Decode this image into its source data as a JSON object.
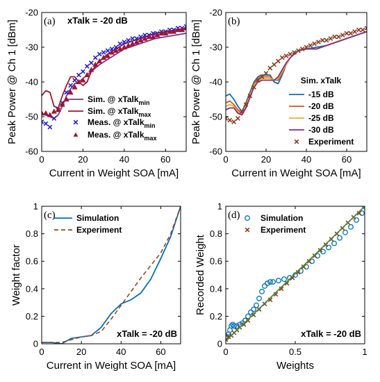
{
  "colors": {
    "blue": "#0072BD",
    "red": "#A2142F",
    "orange": "#D95319",
    "yellow": "#EDB120",
    "purple": "#7E2F8E",
    "brown_x": "#8B3A1A",
    "green_line": "#4a8f3c",
    "axis": "#000000"
  },
  "chart_data": [
    {
      "id": "a",
      "type": "line",
      "panel_label": "(a)",
      "annotation": "xTalk = -20 dB",
      "xlabel": "Current in Weight SOA [mA]",
      "ylabel": "Peak Power @ Ch 1 [dBm]",
      "xlim": [
        0,
        70
      ],
      "ylim": [
        -60,
        -20
      ],
      "xticks": [
        0,
        20,
        40,
        60
      ],
      "yticks": [
        -60,
        -50,
        -40,
        -30,
        -20
      ],
      "grid": false,
      "legend_position": "center-left",
      "series": [
        {
          "name": "Sim. @ xTalk",
          "sub": "min",
          "style": "line",
          "color": "#7E2F8E",
          "x": [
            0,
            2,
            4,
            6,
            8,
            10,
            12,
            14,
            16,
            18,
            20,
            24,
            28,
            32,
            36,
            40,
            45,
            50,
            55,
            60,
            65,
            70
          ],
          "y": [
            -49,
            -49.5,
            -50,
            -50.5,
            -49.5,
            -47,
            -44,
            -42,
            -40.5,
            -40,
            -39,
            -37,
            -35,
            -33.5,
            -32,
            -30.5,
            -29.5,
            -28.5,
            -27.5,
            -27,
            -26.5,
            -26
          ]
        },
        {
          "name": "Sim. @ xTalk",
          "sub": "max",
          "style": "line",
          "color": "#A2142F",
          "x": [
            0,
            2,
            4,
            6,
            8,
            10,
            12,
            14,
            16,
            18,
            20,
            22,
            24,
            28,
            32,
            36,
            40,
            45,
            50,
            55,
            60,
            65,
            70
          ],
          "y": [
            -44,
            -42.5,
            -43,
            -47,
            -47.5,
            -44,
            -41,
            -38.5,
            -38.5,
            -40,
            -41,
            -40,
            -37,
            -34,
            -32,
            -30.5,
            -29,
            -28,
            -27,
            -26,
            -25.5,
            -25,
            -24.5
          ]
        },
        {
          "name": "Meas. @ xTalk",
          "sub": "min",
          "style": "x",
          "color": "#1f1fd6",
          "x": [
            0,
            2,
            4,
            6,
            8,
            10,
            12,
            14,
            16,
            18,
            20,
            22,
            24,
            26,
            28,
            30,
            32,
            34,
            36,
            38,
            40,
            42,
            44,
            46,
            48,
            50,
            52,
            54,
            56,
            58,
            60,
            62,
            64,
            66,
            68,
            70
          ],
          "y": [
            -51.5,
            -52,
            -53,
            -50.5,
            -48,
            -46,
            -43,
            -41,
            -39.5,
            -38,
            -37,
            -35.5,
            -34.5,
            -33,
            -32,
            -31.5,
            -31,
            -30.5,
            -30,
            -29,
            -28.5,
            -28,
            -27.5,
            -27.5,
            -27,
            -26.5,
            -26.5,
            -26,
            -26,
            -25.5,
            -25.5,
            -25,
            -25,
            -24.5,
            -24.5,
            -24
          ]
        },
        {
          "name": "Meas. @ xTalk",
          "sub": "max",
          "style": "triangle",
          "color": "#A2142F",
          "x": [
            0,
            2,
            4,
            6,
            8,
            10,
            12,
            14,
            16,
            18,
            20,
            22,
            24,
            26,
            28,
            30,
            32,
            34,
            36,
            38,
            40,
            42,
            44,
            46,
            48,
            50,
            52,
            54,
            56,
            58,
            60,
            62,
            64,
            66,
            68,
            70
          ],
          "y": [
            -49,
            -49,
            -49.5,
            -48.5,
            -48,
            -46.5,
            -45,
            -43,
            -41.5,
            -40,
            -39.5,
            -38,
            -36.5,
            -35,
            -34,
            -33,
            -32.5,
            -31.5,
            -31,
            -30.5,
            -30,
            -29.5,
            -29,
            -28.5,
            -28,
            -27.5,
            -27,
            -27,
            -26.5,
            -26,
            -26,
            -25.5,
            -25.5,
            -25,
            -25,
            -24.5
          ]
        }
      ]
    },
    {
      "id": "b",
      "type": "line",
      "panel_label": "(b)",
      "legend_title": "Sim. xTalk",
      "xlabel": "Current in Weight SOA [mA]",
      "ylabel": "Peak Power @ Ch 1 [dBm]",
      "xlim": [
        0,
        70
      ],
      "ylim": [
        -60,
        -20
      ],
      "xticks": [
        0,
        20,
        40,
        60
      ],
      "yticks": [
        -60,
        -50,
        -40,
        -30,
        -20
      ],
      "grid": false,
      "legend_position": "bottom-right",
      "series": [
        {
          "name": "-15 dB",
          "style": "line",
          "color": "#0072BD",
          "x": [
            0,
            2,
            4,
            6,
            8,
            10,
            12,
            14,
            16,
            18,
            20,
            22,
            24,
            26,
            28,
            30,
            32,
            34,
            36,
            40,
            45,
            50,
            55,
            60,
            65,
            70
          ],
          "y": [
            -44,
            -43.5,
            -45,
            -47,
            -48.5,
            -46,
            -43,
            -40,
            -38.5,
            -38,
            -38,
            -38,
            -40,
            -40.5,
            -38,
            -35,
            -33,
            -32,
            -31,
            -30.5,
            -30,
            -29.5,
            -28.5,
            -27.5,
            -26.5,
            -25.5
          ]
        },
        {
          "name": "-20 dB",
          "style": "line",
          "color": "#D95319",
          "x": [
            0,
            2,
            4,
            6,
            8,
            10,
            12,
            14,
            16,
            18,
            20,
            22,
            24,
            26,
            28,
            30,
            32,
            34,
            36,
            40,
            45,
            50,
            55,
            60,
            65,
            70
          ],
          "y": [
            -46,
            -45.5,
            -46.5,
            -48,
            -49,
            -46.5,
            -43.5,
            -40.5,
            -39,
            -38.5,
            -38.5,
            -38.5,
            -39.5,
            -39.5,
            -37.5,
            -35,
            -33,
            -32,
            -31,
            -30.5,
            -30.5,
            -29.5,
            -28.5,
            -27.5,
            -26.5,
            -25.5
          ]
        },
        {
          "name": "-25 dB",
          "style": "line",
          "color": "#EDB120",
          "x": [
            0,
            2,
            4,
            6,
            8,
            10,
            12,
            14,
            16,
            18,
            20,
            22,
            24,
            26,
            28,
            30,
            32,
            34,
            36,
            40,
            45,
            50,
            55,
            60,
            65,
            70
          ],
          "y": [
            -47,
            -46.5,
            -47,
            -48.5,
            -49.5,
            -47,
            -44,
            -41,
            -39.5,
            -39,
            -39,
            -39,
            -39.5,
            -39,
            -37,
            -35,
            -33,
            -32,
            -31,
            -30.5,
            -30.5,
            -29.5,
            -28.5,
            -27.5,
            -26.5,
            -25.5
          ]
        },
        {
          "name": "-30 dB",
          "style": "line",
          "color": "#7E2F8E",
          "x": [
            0,
            2,
            4,
            6,
            8,
            10,
            12,
            14,
            16,
            18,
            20,
            22,
            24,
            26,
            28,
            30,
            32,
            34,
            36,
            40,
            45,
            50,
            55,
            60,
            65,
            70
          ],
          "y": [
            -48,
            -47.5,
            -47.5,
            -49,
            -49.5,
            -47.5,
            -44.5,
            -41.5,
            -40,
            -39.5,
            -39.5,
            -39.5,
            -39.5,
            -38.5,
            -36.5,
            -34.5,
            -33,
            -32,
            -31,
            -30.5,
            -30.5,
            -29.5,
            -28.5,
            -27.5,
            -26.5,
            -25.5
          ]
        },
        {
          "name": "Experiment",
          "style": "x",
          "color": "#8B3A1A",
          "x": [
            0,
            2,
            4,
            6,
            8,
            10,
            12,
            14,
            16,
            18,
            20,
            22,
            24,
            26,
            28,
            30,
            32,
            34,
            36,
            38,
            40,
            42,
            44,
            46,
            48,
            50,
            52,
            54,
            56,
            58,
            60,
            62,
            64,
            66,
            68,
            70
          ],
          "y": [
            -50.5,
            -51,
            -51.5,
            -50.5,
            -48.5,
            -46.5,
            -44,
            -41.5,
            -39.5,
            -38.5,
            -37.5,
            -36,
            -35,
            -34,
            -33,
            -32.5,
            -32,
            -31.5,
            -31,
            -30.5,
            -30,
            -29.5,
            -29,
            -28.5,
            -28,
            -28,
            -27.5,
            -27,
            -27,
            -26.5,
            -26,
            -26,
            -25.5,
            -25,
            -25,
            -24.5
          ]
        }
      ]
    },
    {
      "id": "c",
      "type": "line",
      "panel_label": "(c)",
      "annotation": "xTalk = -20 dB",
      "xlabel": "Current in Weight SOA [mA]",
      "ylabel": "Weight factor",
      "xlim": [
        0,
        70
      ],
      "ylim": [
        0,
        1
      ],
      "xticks": [
        0,
        20,
        40,
        60
      ],
      "yticks": [
        0,
        0.2,
        0.4,
        0.6,
        0.8,
        1
      ],
      "grid": false,
      "legend_position": "top-left",
      "series": [
        {
          "name": "Simulation",
          "style": "line",
          "color": "#0072BD",
          "x": [
            0,
            5,
            10,
            15,
            20,
            25,
            30,
            35,
            40,
            45,
            50,
            55,
            60,
            65,
            70
          ],
          "y": [
            0.01,
            0.01,
            0,
            0.04,
            0.05,
            0.06,
            0.12,
            0.22,
            0.29,
            0.32,
            0.37,
            0.47,
            0.62,
            0.78,
            1.0
          ]
        },
        {
          "name": "Experiment",
          "style": "dashed",
          "color": "#A0421E",
          "x": [
            0,
            5,
            10,
            15,
            20,
            25,
            30,
            35,
            40,
            45,
            50,
            55,
            60,
            65,
            70
          ],
          "y": [
            0.01,
            0.01,
            0.01,
            0.03,
            0.05,
            0.06,
            0.09,
            0.18,
            0.28,
            0.38,
            0.48,
            0.57,
            0.66,
            0.8,
            1.0
          ]
        }
      ]
    },
    {
      "id": "d",
      "type": "scatter",
      "panel_label": "(d)",
      "annotation": "xTalk = -20 dB",
      "xlabel": "Weights",
      "ylabel": "Recorded Weight",
      "xlim": [
        0,
        1
      ],
      "ylim": [
        0,
        1
      ],
      "xticks": [
        0,
        0.5,
        1
      ],
      "yticks": [
        0,
        0.2,
        0.4,
        0.6,
        0.8,
        1
      ],
      "grid": false,
      "legend_position": "top-left",
      "series": [
        {
          "name": "Simulation",
          "style": "circle",
          "color": "#0072BD",
          "x": [
            0,
            0.01,
            0.02,
            0.03,
            0.04,
            0.05,
            0.06,
            0.08,
            0.1,
            0.12,
            0.14,
            0.16,
            0.18,
            0.2,
            0.22,
            0.24,
            0.26,
            0.28,
            0.3,
            0.32,
            0.34,
            0.38,
            0.42,
            0.46,
            0.5,
            0.54,
            0.58,
            0.62,
            0.66,
            0.7,
            0.74,
            0.78,
            0.82,
            0.86,
            0.9,
            0.94,
            0.98,
            1.0
          ],
          "y": [
            0.04,
            0.05,
            0.07,
            0.1,
            0.13,
            0.14,
            0.13,
            0.13,
            0.14,
            0.15,
            0.17,
            0.2,
            0.23,
            0.25,
            0.28,
            0.33,
            0.38,
            0.42,
            0.44,
            0.45,
            0.45,
            0.46,
            0.47,
            0.48,
            0.5,
            0.53,
            0.56,
            0.6,
            0.64,
            0.67,
            0.7,
            0.73,
            0.77,
            0.81,
            0.85,
            0.9,
            0.95,
            1.0
          ]
        },
        {
          "name": "Experiment",
          "style": "x",
          "color": "#8B3A1A",
          "x": [
            0,
            0.02,
            0.04,
            0.06,
            0.08,
            0.1,
            0.13,
            0.16,
            0.2,
            0.24,
            0.28,
            0.32,
            0.36,
            0.4,
            0.44,
            0.48,
            0.52,
            0.56,
            0.6,
            0.64,
            0.68,
            0.72,
            0.76,
            0.8,
            0.84,
            0.88,
            0.92,
            0.96,
            1.0
          ],
          "y": [
            0.03,
            0.05,
            0.06,
            0.08,
            0.1,
            0.12,
            0.14,
            0.17,
            0.21,
            0.25,
            0.29,
            0.32,
            0.36,
            0.4,
            0.44,
            0.48,
            0.52,
            0.56,
            0.6,
            0.64,
            0.68,
            0.72,
            0.76,
            0.8,
            0.84,
            0.88,
            0.92,
            0.95,
            1.0
          ]
        },
        {
          "name": "",
          "style": "line",
          "color": "#4a8f3c",
          "x": [
            0,
            1
          ],
          "y": [
            0.02,
            1.0
          ]
        }
      ]
    }
  ]
}
